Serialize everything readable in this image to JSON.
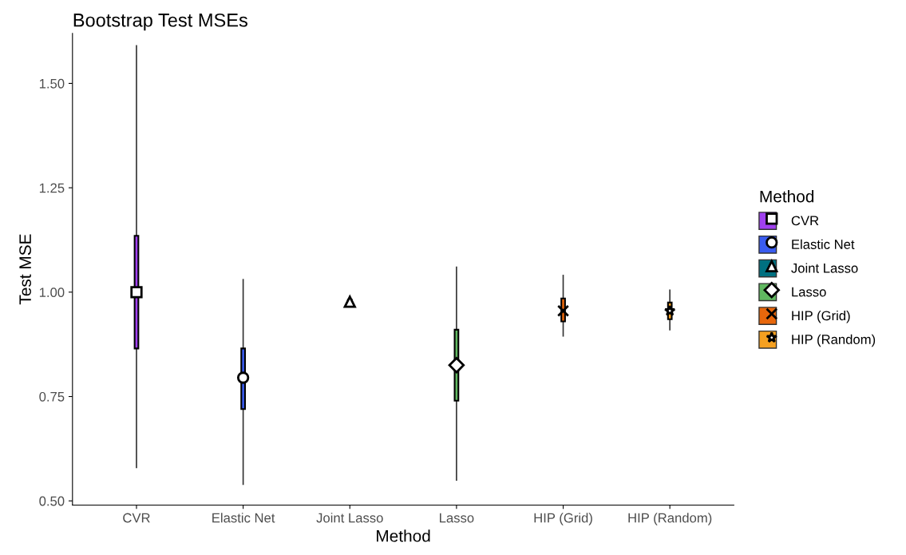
{
  "chart_data": {
    "type": "box",
    "title": "Bootstrap Test MSEs",
    "xlabel": "Method",
    "ylabel": "Test MSE",
    "legend_title": "Method",
    "categories": [
      "CVR",
      "Elastic Net",
      "Joint Lasso",
      "Lasso",
      "HIP (Grid)",
      "HIP (Random)"
    ],
    "ylim": [
      0.49,
      1.62
    ],
    "yticks": [
      {
        "value": 0.5,
        "label": "0.50"
      },
      {
        "value": 0.75,
        "label": "0.75"
      },
      {
        "value": 1.0,
        "label": "1.00"
      },
      {
        "value": 1.25,
        "label": "1.25"
      },
      {
        "value": 1.5,
        "label": "1.50"
      }
    ],
    "legend": "right",
    "series": [
      {
        "name": "CVR",
        "color": "#a040f0",
        "marker": "square",
        "boxes": [
          {
            "low": 0.58,
            "q1": 0.865,
            "median": 1.0,
            "q3": 1.135,
            "high": 1.59
          },
          null,
          null,
          null,
          null,
          null
        ]
      },
      {
        "name": "Elastic Net",
        "color": "#3a5cf0",
        "marker": "circle",
        "boxes": [
          null,
          {
            "low": 0.54,
            "q1": 0.72,
            "median": 0.795,
            "q3": 0.865,
            "high": 1.03
          },
          null,
          null,
          null,
          null
        ]
      },
      {
        "name": "Joint Lasso",
        "color": "#007080",
        "marker": "triangle",
        "boxes": [
          null,
          null,
          {
            "low": 0.97,
            "q1": 0.972,
            "median": 0.977,
            "q3": 0.982,
            "high": 0.983
          },
          null,
          null,
          null
        ]
      },
      {
        "name": "Lasso",
        "color": "#60b860",
        "marker": "diamond",
        "boxes": [
          null,
          null,
          null,
          {
            "low": 0.55,
            "q1": 0.74,
            "median": 0.825,
            "q3": 0.91,
            "high": 1.06
          },
          null,
          null
        ]
      },
      {
        "name": "HIP (Grid)",
        "color": "#e8670c",
        "marker": "cross",
        "boxes": [
          null,
          null,
          null,
          null,
          {
            "low": 0.895,
            "q1": 0.93,
            "median": 0.955,
            "q3": 0.985,
            "high": 1.04
          },
          null
        ]
      },
      {
        "name": "HIP (Random)",
        "color": "#f5a020",
        "marker": "star",
        "boxes": [
          null,
          null,
          null,
          null,
          null,
          {
            "low": 0.91,
            "q1": 0.935,
            "median": 0.955,
            "q3": 0.975,
            "high": 1.005
          }
        ]
      }
    ]
  }
}
